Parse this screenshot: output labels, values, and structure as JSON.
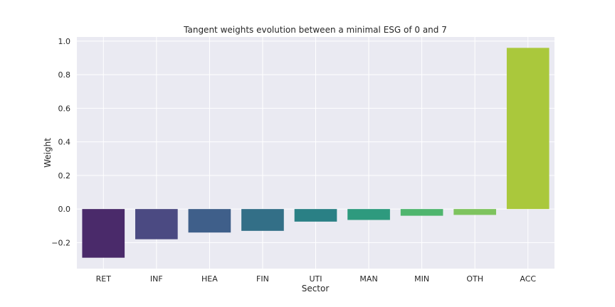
{
  "chart_data": {
    "type": "bar",
    "title": "Tangent weights evolution between a minimal ESG of 0 and 7",
    "xlabel": "Sector",
    "ylabel": "Weight",
    "categories": [
      "RET",
      "INF",
      "HEA",
      "FIN",
      "UTI",
      "MAN",
      "MIN",
      "OTH",
      "ACC"
    ],
    "values": [
      -0.29,
      -0.18,
      -0.14,
      -0.13,
      -0.075,
      -0.065,
      -0.04,
      -0.035,
      0.96
    ],
    "ylim": [
      -0.355,
      1.025
    ],
    "yticks": [
      -0.2,
      0.0,
      0.2,
      0.4,
      0.6,
      0.8,
      1.0
    ],
    "ytick_labels": [
      "−0.2",
      "0.0",
      "0.2",
      "0.4",
      "0.6",
      "0.8",
      "1.0"
    ],
    "grid": true,
    "colors": {
      "background": "#eaeaf2",
      "grid": "#ffffff",
      "bars": [
        "#4a2a6a",
        "#4b4a82",
        "#3f5f8a",
        "#336f87",
        "#2a8085",
        "#2e9a7e",
        "#4fb56e",
        "#7ec35e",
        "#aac83c"
      ]
    }
  }
}
